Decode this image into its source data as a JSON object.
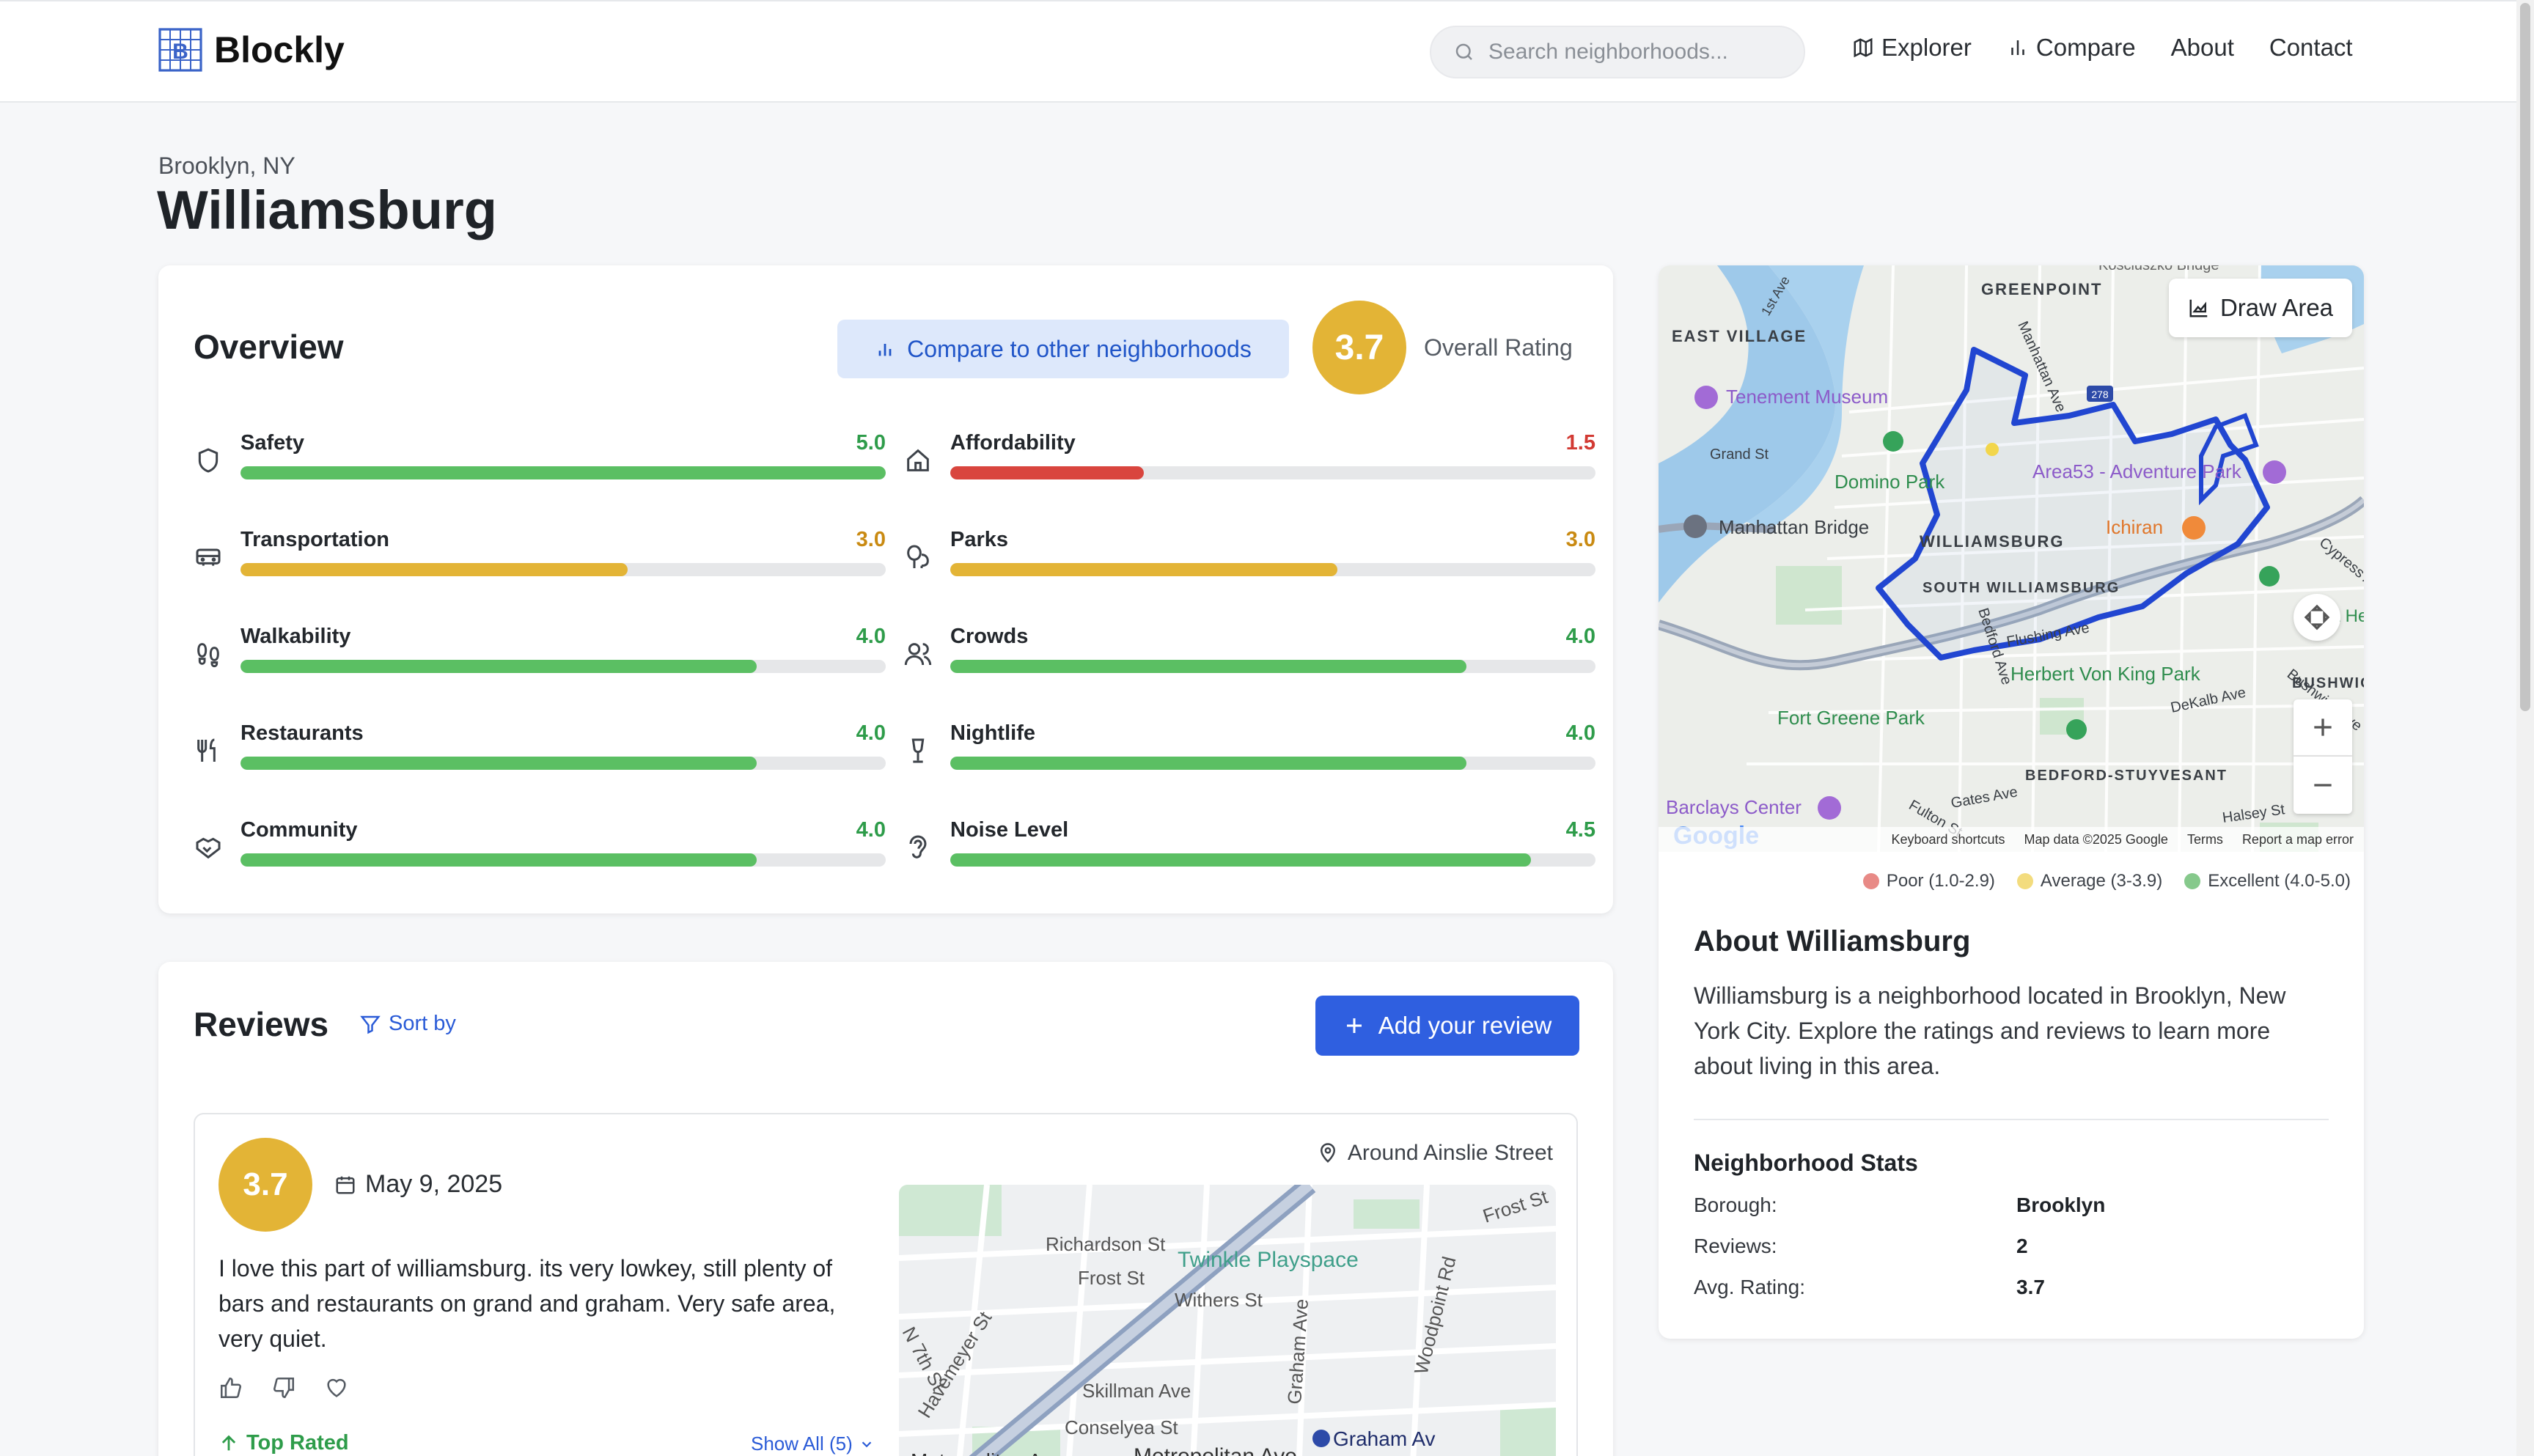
{
  "app": {
    "name": "Blockly"
  },
  "nav": {
    "search_placeholder": "Search neighborhoods...",
    "links": [
      {
        "label": "Explorer",
        "icon": "map-icon"
      },
      {
        "label": "Compare",
        "icon": "bar-chart-icon"
      },
      {
        "label": "About"
      },
      {
        "label": "Contact"
      }
    ]
  },
  "header": {
    "breadcrumb": "Brooklyn, NY",
    "title": "Williamsburg"
  },
  "overview": {
    "title": "Overview",
    "compare_label": "Compare to other neighborhoods",
    "overall_rating": "3.7",
    "overall_label": "Overall Rating",
    "metrics": [
      {
        "name": "Safety",
        "value": "5.0",
        "score": 5.0,
        "icon": "shield-icon",
        "color": "#5bbf63"
      },
      {
        "name": "Affordability",
        "value": "1.5",
        "score": 1.5,
        "icon": "home-icon",
        "color": "#d9453e"
      },
      {
        "name": "Transportation",
        "value": "3.0",
        "score": 3.0,
        "icon": "bus-icon",
        "color": "#e3b436"
      },
      {
        "name": "Parks",
        "value": "3.0",
        "score": 3.0,
        "icon": "trees-icon",
        "color": "#e3b436"
      },
      {
        "name": "Walkability",
        "value": "4.0",
        "score": 4.0,
        "icon": "footprints-icon",
        "color": "#5bbf63"
      },
      {
        "name": "Crowds",
        "value": "4.0",
        "score": 4.0,
        "icon": "users-icon",
        "color": "#5bbf63"
      },
      {
        "name": "Restaurants",
        "value": "4.0",
        "score": 4.0,
        "icon": "utensils-icon",
        "color": "#5bbf63"
      },
      {
        "name": "Nightlife",
        "value": "4.0",
        "score": 4.0,
        "icon": "wine-icon",
        "color": "#5bbf63"
      },
      {
        "name": "Community",
        "value": "4.0",
        "score": 4.0,
        "icon": "handshake-icon",
        "color": "#5bbf63"
      },
      {
        "name": "Noise Level",
        "value": "4.5",
        "score": 4.5,
        "icon": "ear-icon",
        "color": "#5bbf63"
      }
    ],
    "value_colors": {
      "good": "#2e9c4a",
      "mid": "#c98a12",
      "bad": "#d23a33"
    }
  },
  "reviews": {
    "title": "Reviews",
    "sort_label": "Sort by",
    "add_label": "Add your review",
    "items": [
      {
        "rating": "3.7",
        "date": "May 9, 2025",
        "location": "Around Ainslie Street",
        "text": "I love this part of williamsburg. its very lowkey, still plenty of bars and restaurants on grand and graham. Very safe area, very quiet.",
        "badge": "Top Rated",
        "show_all": "Show All (5)",
        "map_labels": {
          "richardson": "Richardson St",
          "playspace": "Twinkle Playspace",
          "frost_top": "Frost St",
          "frost": "Frost St",
          "withers": "Withers St",
          "graham": "Graham Ave",
          "woodpoint": "Woodpoint Rd",
          "havemeyer": "Havemeyer St",
          "seventh": "N 7th St",
          "skillman": "Skillman Ave",
          "conselyea": "Conselyea St",
          "graham_station": "Graham Av",
          "metropolitan_left": "Metropolitan Av",
          "metropolitan": "Metropolitan Ave"
        }
      }
    ]
  },
  "map": {
    "draw_label": "Draw Area",
    "labels": {
      "greenpoint": "GREENPOINT",
      "east_village": "EAST VILLAGE",
      "tenement": "Tenement Museum",
      "domino": "Domino Park",
      "area53": "Area53 - Adventure Park",
      "manhattan_bridge": "Manhattan Bridge",
      "williamsburg": "WILLIAMSBURG",
      "south_williamsburg": "SOUTH WILLIAMSBURG",
      "ichiran": "Ichiran",
      "herbert": "Herbert Von King Park",
      "fort_greene": "Fort Greene Park",
      "maria": "Maria Hernandez Park",
      "bushwick": "BUSHWICK",
      "bedstuy": "BEDFORD-STUYVESANT",
      "barclays": "Barclays Center",
      "grand_st": "Grand St",
      "first_ave": "1st Ave",
      "manhattan_ave": "Manhattan Ave",
      "flushing": "Flushing Ave",
      "bedford": "Bedford Ave",
      "bushwick_ave": "Bushwick Ave",
      "dekalb": "DeKalb Ave",
      "gates": "Gates Ave",
      "fulton": "Fulton St",
      "halsey": "Halsey St",
      "cypress": "Cypress Ave",
      "kosciuszko": "Kosciuszko Bridge",
      "shortcut_278": "278"
    },
    "footer": [
      "Keyboard shortcuts",
      "Map data ©2025 Google",
      "Terms",
      "Report a map error"
    ],
    "google": "Google"
  },
  "legend": [
    {
      "label": "Poor (1.0-2.9)",
      "color": "#e88a86"
    },
    {
      "label": "Average (3-3.9)",
      "color": "#f3dc7e"
    },
    {
      "label": "Excellent (4.0-5.0)",
      "color": "#86c98c"
    }
  ],
  "about": {
    "title": "About Williamsburg",
    "text": "Williamsburg is a neighborhood located in Brooklyn, New York City. Explore the ratings and reviews to learn more about living in this area.",
    "stats_title": "Neighborhood Stats",
    "stats": [
      {
        "label": "Borough:",
        "value": "Brooklyn"
      },
      {
        "label": "Reviews:",
        "value": "2"
      },
      {
        "label": "Avg. Rating:",
        "value": "3.7"
      }
    ]
  }
}
